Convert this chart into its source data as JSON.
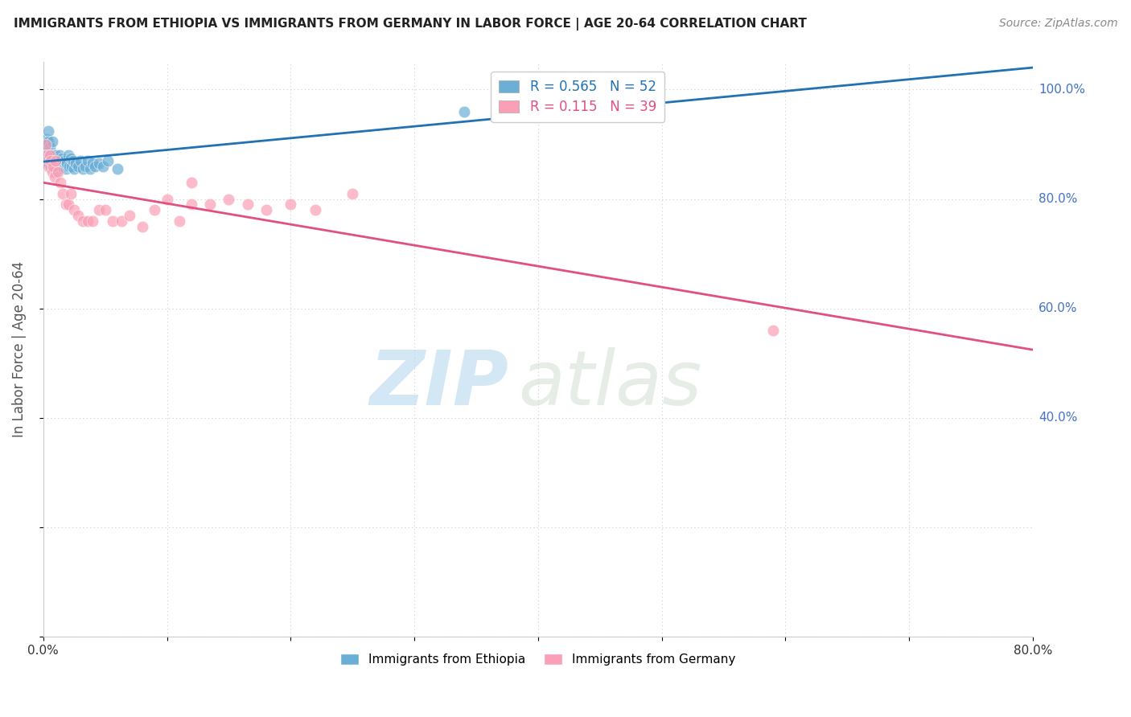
{
  "title": "IMMIGRANTS FROM ETHIOPIA VS IMMIGRANTS FROM GERMANY IN LABOR FORCE | AGE 20-64 CORRELATION CHART",
  "source": "Source: ZipAtlas.com",
  "ylabel": "In Labor Force | Age 20-64",
  "xlim": [
    0.0,
    0.8
  ],
  "ylim": [
    0.0,
    1.05
  ],
  "ethiopia_R": 0.565,
  "ethiopia_N": 52,
  "germany_R": 0.115,
  "germany_N": 39,
  "ethiopia_color": "#6baed6",
  "germany_color": "#fa9fb5",
  "ethiopia_line_color": "#2171b5",
  "germany_line_color": "#e05080",
  "ethiopia_x": [
    0.001,
    0.002,
    0.002,
    0.003,
    0.003,
    0.004,
    0.004,
    0.005,
    0.005,
    0.006,
    0.006,
    0.007,
    0.007,
    0.008,
    0.008,
    0.009,
    0.01,
    0.01,
    0.011,
    0.011,
    0.012,
    0.012,
    0.013,
    0.013,
    0.014,
    0.015,
    0.015,
    0.016,
    0.017,
    0.018,
    0.019,
    0.02,
    0.021,
    0.022,
    0.023,
    0.024,
    0.025,
    0.026,
    0.028,
    0.03,
    0.032,
    0.034,
    0.036,
    0.038,
    0.04,
    0.042,
    0.045,
    0.048,
    0.052,
    0.06,
    0.34,
    0.4
  ],
  "ethiopia_y": [
    0.87,
    0.9,
    0.88,
    0.91,
    0.895,
    0.925,
    0.905,
    0.87,
    0.895,
    0.88,
    0.86,
    0.875,
    0.905,
    0.88,
    0.865,
    0.87,
    0.85,
    0.88,
    0.875,
    0.86,
    0.875,
    0.855,
    0.865,
    0.88,
    0.87,
    0.86,
    0.875,
    0.86,
    0.87,
    0.855,
    0.865,
    0.88,
    0.86,
    0.875,
    0.86,
    0.87,
    0.855,
    0.865,
    0.86,
    0.87,
    0.855,
    0.86,
    0.87,
    0.855,
    0.865,
    0.86,
    0.865,
    0.86,
    0.87,
    0.855,
    0.96,
    0.96
  ],
  "germany_x": [
    0.002,
    0.003,
    0.004,
    0.005,
    0.006,
    0.007,
    0.008,
    0.009,
    0.01,
    0.012,
    0.014,
    0.016,
    0.018,
    0.02,
    0.022,
    0.025,
    0.028,
    0.032,
    0.036,
    0.04,
    0.045,
    0.05,
    0.056,
    0.063,
    0.07,
    0.08,
    0.09,
    0.1,
    0.11,
    0.12,
    0.135,
    0.15,
    0.165,
    0.18,
    0.2,
    0.22,
    0.25,
    0.59,
    0.12
  ],
  "germany_y": [
    0.9,
    0.88,
    0.86,
    0.88,
    0.87,
    0.85,
    0.86,
    0.84,
    0.87,
    0.85,
    0.83,
    0.81,
    0.79,
    0.79,
    0.81,
    0.78,
    0.77,
    0.76,
    0.76,
    0.76,
    0.78,
    0.78,
    0.76,
    0.76,
    0.77,
    0.75,
    0.78,
    0.8,
    0.76,
    0.83,
    0.79,
    0.8,
    0.79,
    0.78,
    0.79,
    0.78,
    0.81,
    0.56,
    0.79
  ],
  "watermark_zip": "ZIP",
  "watermark_atlas": "atlas",
  "background_color": "#ffffff",
  "grid_color": "#cccccc"
}
